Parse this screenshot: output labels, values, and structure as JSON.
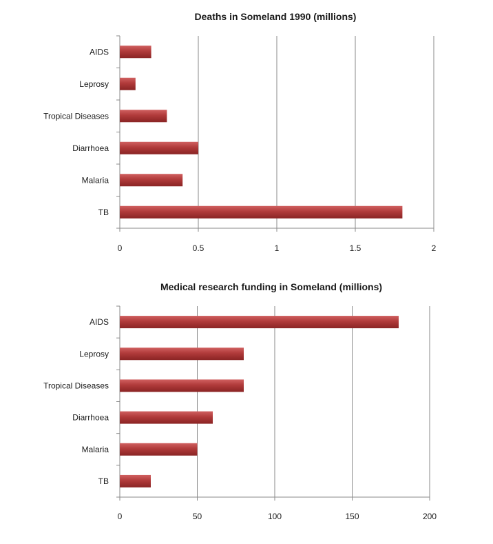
{
  "chart_data": [
    {
      "type": "bar",
      "orientation": "horizontal",
      "title": "Deaths in Someland 1990  (millions)",
      "categories": [
        "AIDS",
        "Leprosy",
        "Tropical Diseases",
        "Diarrhoea",
        "Malaria",
        "TB"
      ],
      "values": [
        0.2,
        0.1,
        0.3,
        0.5,
        0.4,
        1.8
      ],
      "xlim": [
        0,
        2
      ],
      "xticks": [
        "0",
        "0.5",
        "1",
        "1.5",
        "2"
      ],
      "grid": true,
      "legend": "none",
      "bar_color": "#b03a3a"
    },
    {
      "type": "bar",
      "orientation": "horizontal",
      "title": "Medical research funding in Someland  (millions)",
      "categories": [
        "AIDS",
        "Leprosy",
        "Tropical Diseases",
        "Diarrhoea",
        "Malaria",
        "TB"
      ],
      "values": [
        180,
        80,
        80,
        60,
        50,
        20
      ],
      "xlim": [
        0,
        200
      ],
      "xticks": [
        "0",
        "50",
        "100",
        "150",
        "200"
      ],
      "grid": true,
      "legend": "none",
      "bar_color": "#b03a3a"
    }
  ]
}
